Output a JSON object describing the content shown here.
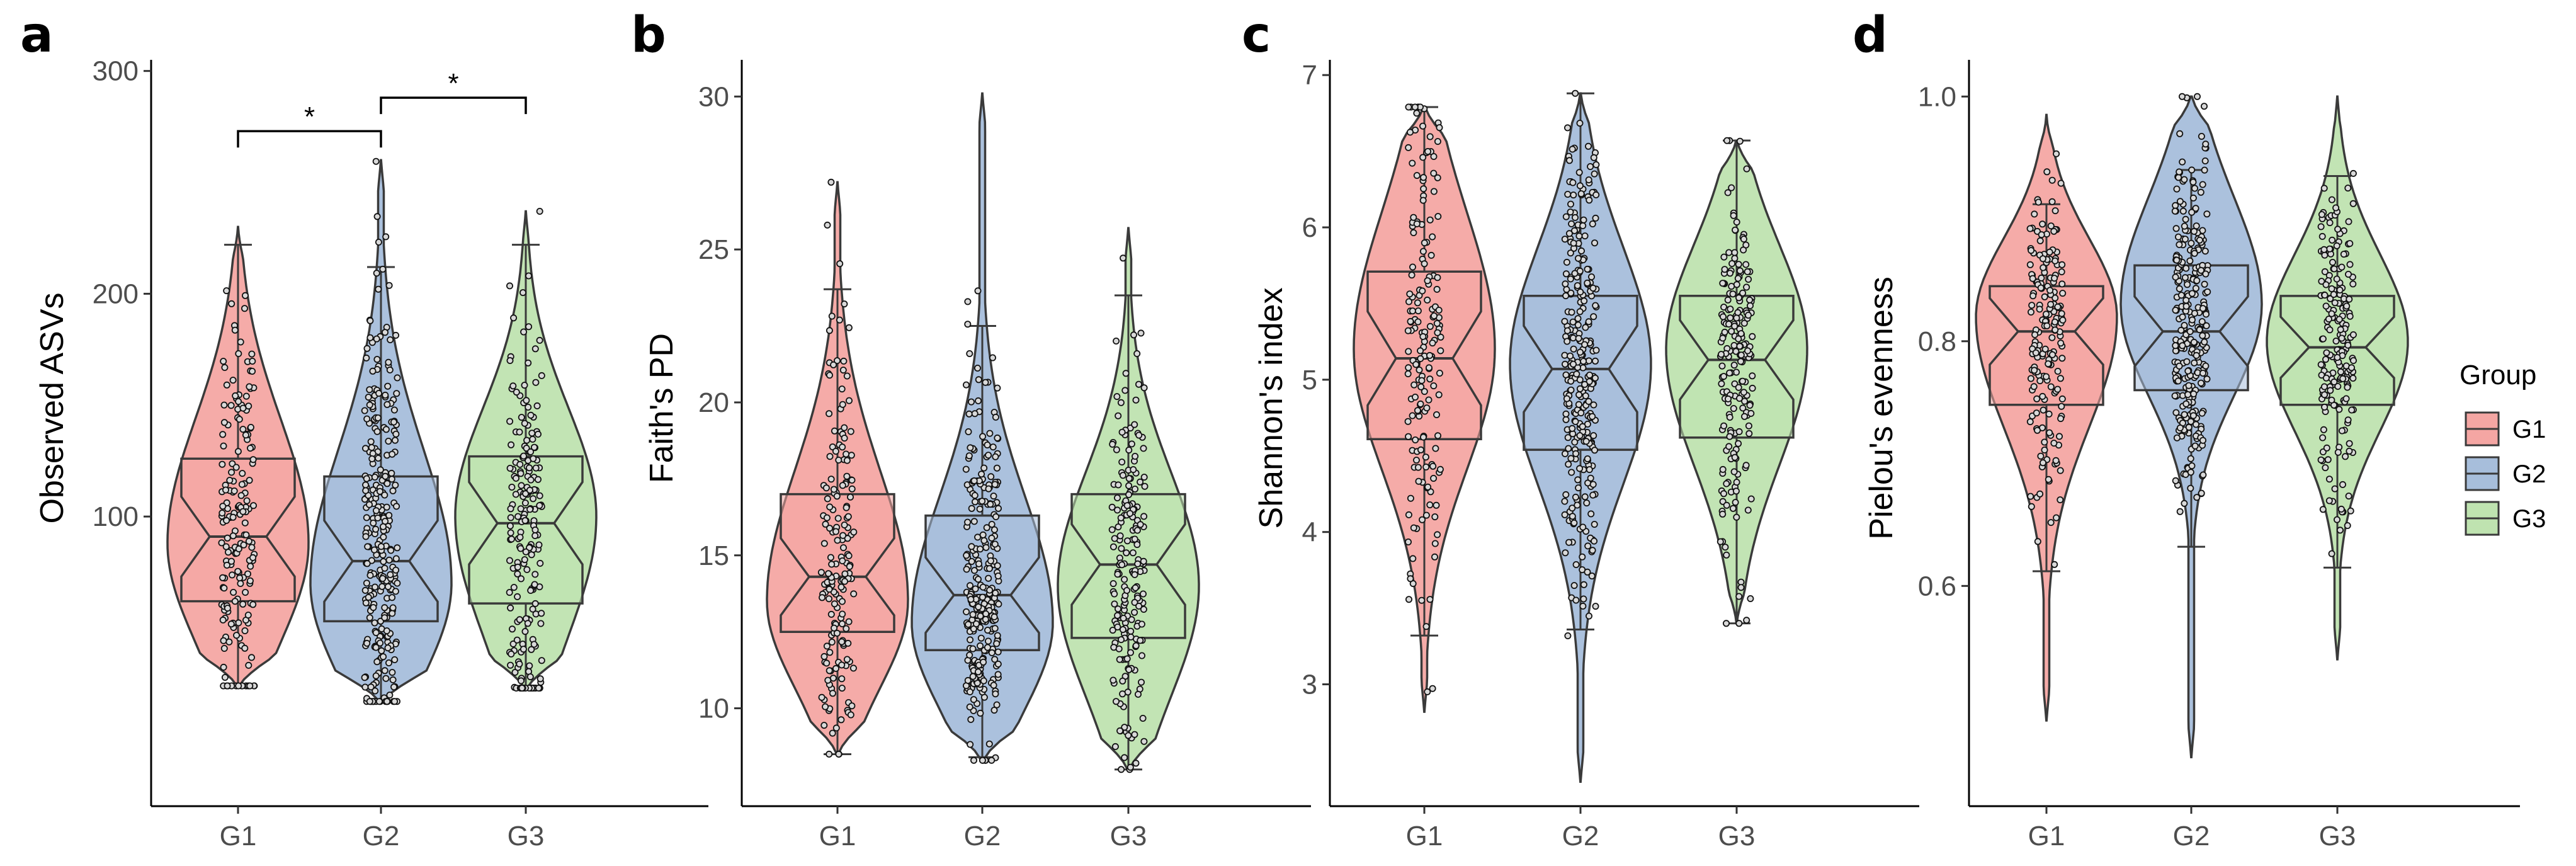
{
  "colors": {
    "G1": "#F4A6A3",
    "G2": "#A7BEDB",
    "G3": "#BFE3B0",
    "outline": "#3a3a3a",
    "point_fill": "#d9d9d9"
  },
  "legend": {
    "title": "Group",
    "items": [
      "G1",
      "G2",
      "G3"
    ]
  },
  "chart_data": [
    {
      "type": "violin-box",
      "panel": "a",
      "ylabel": "Observed ASVs",
      "xlabel": "",
      "categories": [
        "G1",
        "G2",
        "G3"
      ],
      "ylim": [
        -30,
        305
      ],
      "yticks": [
        100,
        200,
        300
      ],
      "n_points": [
        180,
        290,
        200
      ],
      "groups": [
        {
          "name": "G1",
          "min": 24,
          "q1": 62,
          "median": 91,
          "q3": 126,
          "max": 230,
          "whisker_low": 24,
          "whisker_high": 222,
          "mode": 88
        },
        {
          "name": "G2",
          "min": 17,
          "q1": 53,
          "median": 80,
          "q3": 118,
          "max": 260,
          "whisker_low": 17,
          "whisker_high": 212,
          "mode": 70
        },
        {
          "name": "G3",
          "min": 23,
          "q1": 61,
          "median": 97,
          "q3": 127,
          "max": 237,
          "whisker_low": 23,
          "whisker_high": 222,
          "mode": 100
        }
      ],
      "significance": [
        {
          "from": "G1",
          "to": "G2",
          "label": "*",
          "y": 273
        },
        {
          "from": "G2",
          "to": "G3",
          "label": "*",
          "y": 288
        }
      ]
    },
    {
      "type": "violin-box",
      "panel": "b",
      "ylabel": "Faith's PD",
      "xlabel": "",
      "categories": [
        "G1",
        "G2",
        "G3"
      ],
      "ylim": [
        6.8,
        31.2
      ],
      "yticks": [
        10,
        15,
        20,
        25,
        30
      ],
      "n_points": [
        180,
        290,
        200
      ],
      "groups": [
        {
          "name": "G1",
          "min": 8.5,
          "q1": 12.5,
          "median": 14.3,
          "q3": 17.0,
          "max": 27.2,
          "whisker_low": 8.5,
          "whisker_high": 23.7,
          "mode": 13.5
        },
        {
          "name": "G2",
          "min": 8.3,
          "q1": 11.9,
          "median": 13.7,
          "q3": 16.3,
          "max": 30.1,
          "whisker_low": 8.4,
          "whisker_high": 22.5,
          "mode": 12.8
        },
        {
          "name": "G3",
          "min": 8.0,
          "q1": 12.3,
          "median": 14.7,
          "q3": 17.0,
          "max": 25.7,
          "whisker_low": 8.0,
          "whisker_high": 23.5,
          "mode": 14.0
        }
      ]
    },
    {
      "type": "violin-box",
      "panel": "c",
      "ylabel": "Shannon's index",
      "xlabel": "",
      "categories": [
        "G1",
        "G2",
        "G3"
      ],
      "ylim": [
        2.2,
        7.1
      ],
      "yticks": [
        3,
        4,
        5,
        6,
        7
      ],
      "n_points": [
        180,
        290,
        200
      ],
      "groups": [
        {
          "name": "G1",
          "min": 2.82,
          "q1": 4.61,
          "median": 5.14,
          "q3": 5.71,
          "max": 6.79,
          "whisker_low": 3.32,
          "whisker_high": 6.79,
          "mode": 5.2
        },
        {
          "name": "G2",
          "min": 2.36,
          "q1": 4.54,
          "median": 5.07,
          "q3": 5.55,
          "max": 6.88,
          "whisker_low": 3.36,
          "whisker_high": 6.88,
          "mode": 5.1
        },
        {
          "name": "G3",
          "min": 3.4,
          "q1": 4.62,
          "median": 5.13,
          "q3": 5.55,
          "max": 6.57,
          "whisker_low": 3.4,
          "whisker_high": 6.57,
          "mode": 5.2
        }
      ]
    },
    {
      "type": "violin-box",
      "panel": "d",
      "ylabel": "Pielou's evenness",
      "xlabel": "",
      "categories": [
        "G1",
        "G2",
        "G3"
      ],
      "ylim": [
        0.42,
        1.03
      ],
      "yticks": [
        0.6,
        0.8,
        1.0
      ],
      "n_points": [
        180,
        290,
        200
      ],
      "groups": [
        {
          "name": "G1",
          "min": 0.49,
          "q1": 0.748,
          "median": 0.808,
          "q3": 0.845,
          "max": 0.985,
          "whisker_low": 0.612,
          "whisker_high": 0.912,
          "mode": 0.82
        },
        {
          "name": "G2",
          "min": 0.46,
          "q1": 0.76,
          "median": 0.808,
          "q3": 0.862,
          "max": 1.0,
          "whisker_low": 0.632,
          "whisker_high": 0.94,
          "mode": 0.83
        },
        {
          "name": "G3",
          "min": 0.54,
          "q1": 0.748,
          "median": 0.795,
          "q3": 0.837,
          "max": 1.0,
          "whisker_low": 0.615,
          "whisker_high": 0.935,
          "mode": 0.8
        }
      ]
    }
  ]
}
